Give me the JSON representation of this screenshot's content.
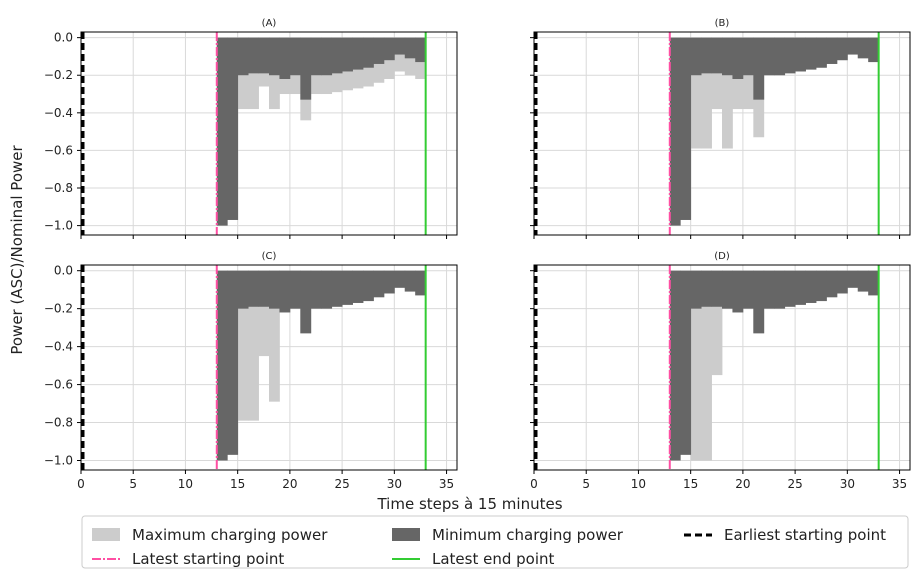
{
  "figure": {
    "ylabel": "Power (ASC)/Nominal Power",
    "xlabel": "Time steps à 15 minutes"
  },
  "legend": {
    "placement": "bottom",
    "items": [
      {
        "label": "Maximum charging power",
        "kind": "patch",
        "color": "#cccccc"
      },
      {
        "label": "Minimum charging power",
        "kind": "patch",
        "color": "#666666"
      },
      {
        "label": "Earliest starting point",
        "kind": "dashed-line",
        "color": "#000000"
      },
      {
        "label": "Latest starting point",
        "kind": "dashdot-line",
        "color": "#ff4fa3"
      },
      {
        "label": "Latest end point",
        "kind": "solid-line",
        "color": "#33cc33"
      }
    ]
  },
  "colors": {
    "max_fill": "#cccccc",
    "min_fill": "#666666",
    "grid": "#d9d9d9",
    "earliest": "#000000",
    "latest_start": "#ff4fa3",
    "latest_end": "#33cc33"
  },
  "chart_data": [
    {
      "type": "bar",
      "title": "(A)",
      "xlim": [
        0,
        36
      ],
      "ylim": [
        -1.05,
        0.03
      ],
      "xticks": [
        0,
        5,
        10,
        15,
        20,
        25,
        30,
        35
      ],
      "yticks": [
        0.0,
        -0.2,
        -0.4,
        -0.6,
        -0.8,
        -1.0
      ],
      "yticklabels": [
        "0.0",
        "−0.2",
        "−0.4",
        "−0.6",
        "−0.8",
        "−1.0"
      ],
      "earliest_start": 0,
      "latest_start": 13,
      "latest_end": 33,
      "x": [
        13,
        14,
        15,
        16,
        17,
        18,
        19,
        20,
        21,
        22,
        23,
        24,
        25,
        26,
        27,
        28,
        29,
        30,
        31,
        32
      ],
      "series": [
        {
          "name": "Maximum charging power",
          "values": [
            -1.0,
            -0.97,
            -0.38,
            -0.38,
            -0.26,
            -0.38,
            -0.3,
            -0.3,
            -0.44,
            -0.3,
            -0.3,
            -0.29,
            -0.28,
            -0.27,
            -0.26,
            -0.24,
            -0.22,
            -0.18,
            -0.2,
            -0.22
          ]
        },
        {
          "name": "Minimum charging power",
          "values": [
            -1.0,
            -0.97,
            -0.2,
            -0.19,
            -0.19,
            -0.2,
            -0.22,
            -0.2,
            -0.33,
            -0.2,
            -0.2,
            -0.19,
            -0.18,
            -0.17,
            -0.16,
            -0.14,
            -0.12,
            -0.09,
            -0.11,
            -0.13
          ]
        }
      ]
    },
    {
      "type": "bar",
      "title": "(B)",
      "xlim": [
        0,
        36
      ],
      "ylim": [
        -1.05,
        0.03
      ],
      "xticks": [
        0,
        5,
        10,
        15,
        20,
        25,
        30,
        35
      ],
      "yticks": [
        0.0,
        -0.2,
        -0.4,
        -0.6,
        -0.8,
        -1.0
      ],
      "yticklabels": [
        "0.0",
        "−0.2",
        "−0.4",
        "−0.6",
        "−0.8",
        "−1.0"
      ],
      "earliest_start": 0,
      "latest_start": 13,
      "latest_end": 33,
      "x": [
        13,
        14,
        15,
        16,
        17,
        18,
        19,
        20,
        21,
        22,
        23,
        24,
        25,
        26,
        27,
        28,
        29,
        30,
        31,
        32
      ],
      "series": [
        {
          "name": "Maximum charging power",
          "values": [
            -1.0,
            -0.97,
            -0.59,
            -0.59,
            -0.38,
            -0.59,
            -0.38,
            -0.38,
            -0.53,
            -0.2,
            -0.2,
            -0.19,
            -0.18,
            -0.17,
            -0.16,
            -0.14,
            -0.12,
            -0.09,
            -0.11,
            -0.13
          ]
        },
        {
          "name": "Minimum charging power",
          "values": [
            -1.0,
            -0.97,
            -0.2,
            -0.19,
            -0.19,
            -0.2,
            -0.22,
            -0.2,
            -0.33,
            -0.2,
            -0.2,
            -0.19,
            -0.18,
            -0.17,
            -0.16,
            -0.14,
            -0.12,
            -0.09,
            -0.11,
            -0.13
          ]
        }
      ]
    },
    {
      "type": "bar",
      "title": "(C)",
      "xlim": [
        0,
        36
      ],
      "ylim": [
        -1.05,
        0.03
      ],
      "xticks": [
        0,
        5,
        10,
        15,
        20,
        25,
        30,
        35
      ],
      "yticks": [
        0.0,
        -0.2,
        -0.4,
        -0.6,
        -0.8,
        -1.0
      ],
      "yticklabels": [
        "0.0",
        "−0.2",
        "−0.4",
        "−0.6",
        "−0.8",
        "−1.0"
      ],
      "earliest_start": 0,
      "latest_start": 13,
      "latest_end": 33,
      "x": [
        13,
        14,
        15,
        16,
        17,
        18,
        19,
        20,
        21,
        22,
        23,
        24,
        25,
        26,
        27,
        28,
        29,
        30,
        31,
        32
      ],
      "series": [
        {
          "name": "Maximum charging power",
          "values": [
            -1.0,
            -0.97,
            -0.79,
            -0.79,
            -0.45,
            -0.69,
            -0.22,
            -0.2,
            -0.33,
            -0.2,
            -0.2,
            -0.19,
            -0.18,
            -0.17,
            -0.16,
            -0.14,
            -0.12,
            -0.09,
            -0.11,
            -0.13
          ]
        },
        {
          "name": "Minimum charging power",
          "values": [
            -1.0,
            -0.97,
            -0.2,
            -0.19,
            -0.19,
            -0.2,
            -0.22,
            -0.2,
            -0.33,
            -0.2,
            -0.2,
            -0.19,
            -0.18,
            -0.17,
            -0.16,
            -0.14,
            -0.12,
            -0.09,
            -0.11,
            -0.13
          ]
        }
      ]
    },
    {
      "type": "bar",
      "title": "(D)",
      "xlim": [
        0,
        36
      ],
      "ylim": [
        -1.05,
        0.03
      ],
      "xticks": [
        0,
        5,
        10,
        15,
        20,
        25,
        30,
        35
      ],
      "yticks": [
        0.0,
        -0.2,
        -0.4,
        -0.6,
        -0.8,
        -1.0
      ],
      "yticklabels": [
        "0.0",
        "−0.2",
        "−0.4",
        "−0.6",
        "−0.8",
        "−1.0"
      ],
      "earliest_start": 0,
      "latest_start": 13,
      "latest_end": 33,
      "x": [
        13,
        14,
        15,
        16,
        17,
        18,
        19,
        20,
        21,
        22,
        23,
        24,
        25,
        26,
        27,
        28,
        29,
        30,
        31,
        32
      ],
      "series": [
        {
          "name": "Maximum charging power",
          "values": [
            -1.0,
            -0.97,
            -1.0,
            -1.0,
            -0.55,
            -0.2,
            -0.22,
            -0.2,
            -0.33,
            -0.2,
            -0.2,
            -0.19,
            -0.18,
            -0.17,
            -0.16,
            -0.14,
            -0.12,
            -0.09,
            -0.11,
            -0.13
          ]
        },
        {
          "name": "Minimum charging power",
          "values": [
            -1.0,
            -0.97,
            -0.2,
            -0.19,
            -0.19,
            -0.2,
            -0.22,
            -0.2,
            -0.33,
            -0.2,
            -0.2,
            -0.19,
            -0.18,
            -0.17,
            -0.16,
            -0.14,
            -0.12,
            -0.09,
            -0.11,
            -0.13
          ]
        }
      ]
    }
  ]
}
